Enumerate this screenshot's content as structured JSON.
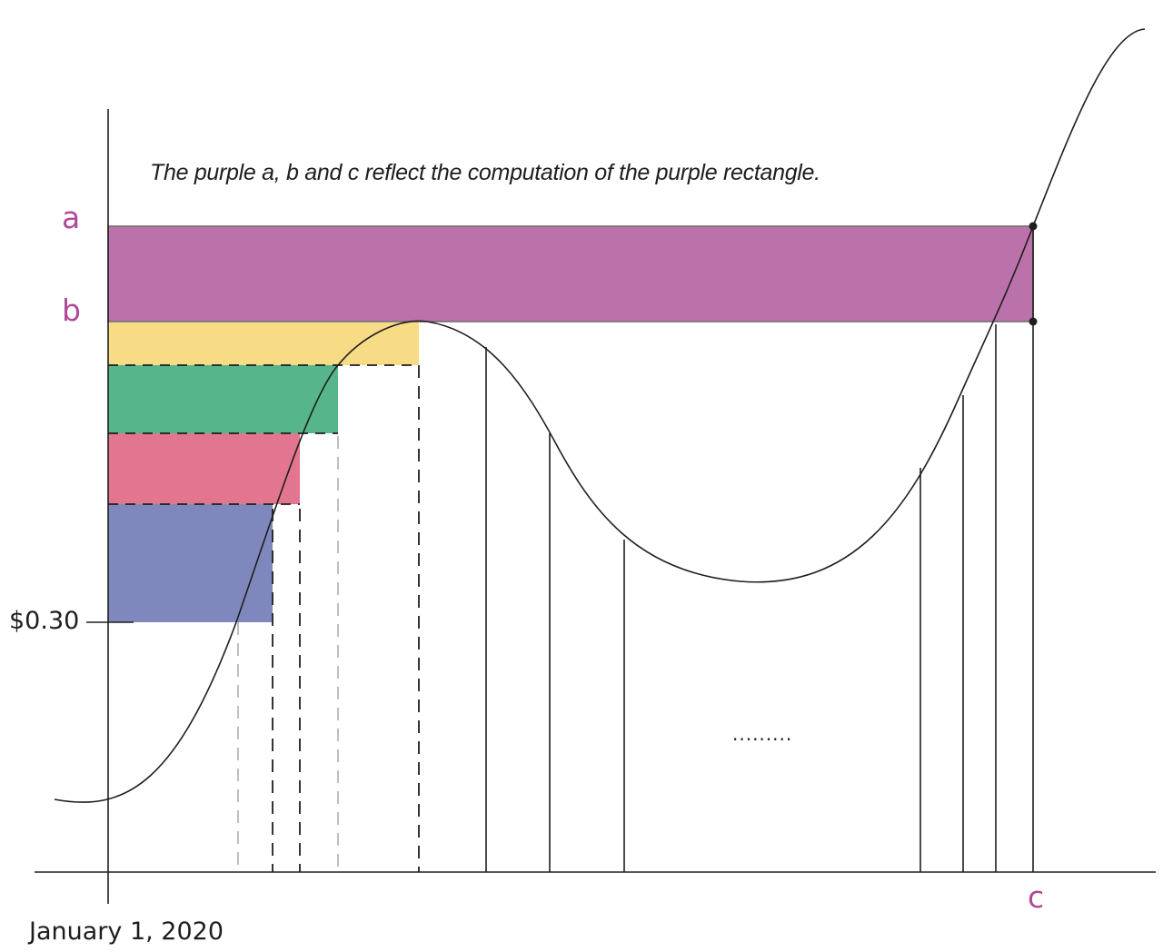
{
  "caption": "The purple a, b and c reflect the computation of the purple rectangle.",
  "labels": {
    "a": "a",
    "b": "b",
    "c": "c",
    "price": "$0.30",
    "date": "January 1, 2020",
    "ellipsis": "........."
  },
  "colors": {
    "purple_band": "#bb72aa",
    "purple_text": "#b04a98",
    "yellow_band": "#f7dc85",
    "green_band": "#57b58b",
    "pink_band": "#e27590",
    "blue_band": "#7f88bd",
    "line": "#1e1e1e",
    "dashed_light": "#b8b8b8"
  }
}
